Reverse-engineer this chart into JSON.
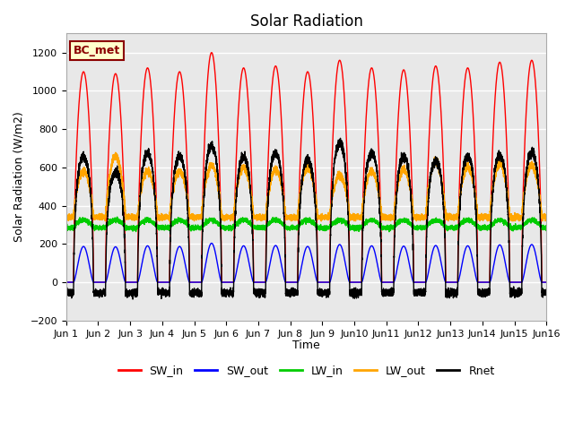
{
  "title": "Solar Radiation",
  "ylabel": "Solar Radiation (W/m2)",
  "xlabel": "Time",
  "annotation": "BC_met",
  "ylim": [
    -200,
    1300
  ],
  "yticks": [
    -200,
    0,
    200,
    400,
    600,
    800,
    1000,
    1200
  ],
  "num_days": 15,
  "colors": {
    "SW_in": "#ff0000",
    "SW_out": "#0000ff",
    "LW_in": "#00cc00",
    "LW_out": "#ffa500",
    "Rnet": "#000000"
  },
  "sw_peaks": [
    1100,
    1090,
    1120,
    1100,
    1200,
    1120,
    1130,
    1100,
    1160,
    1120,
    1110,
    1130,
    1120,
    1150,
    1160
  ],
  "lw_out_peaks": [
    580,
    660,
    580,
    580,
    610,
    600,
    590,
    600,
    560,
    580,
    590,
    630,
    600,
    620,
    610
  ],
  "background_color": "#e8e8e8",
  "grid_color": "#ffffff",
  "pts_per_day": 480,
  "sunrise": 5.5,
  "sunset": 20.5,
  "sw_steepness": 8.0,
  "lw_in_base": 285,
  "lw_out_base": 340,
  "night_rnet": -100
}
